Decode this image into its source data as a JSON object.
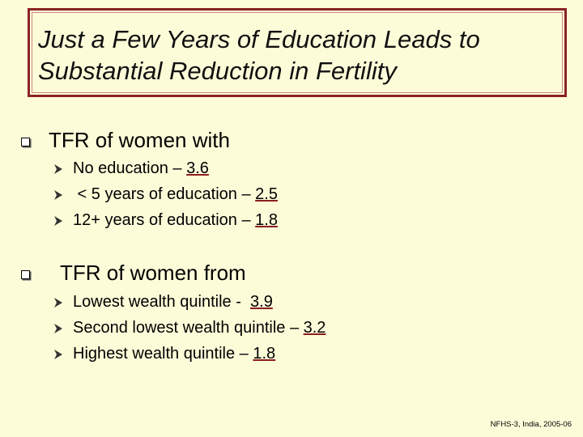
{
  "title": "Just a Few Years of Education Leads to Substantial Reduction in Fertility",
  "sections": [
    {
      "heading": "TFR of women with",
      "items": [
        {
          "label": "No education – ",
          "value": "3.6"
        },
        {
          "label": " < 5 years of education – ",
          "value": "2.5"
        },
        {
          "label": "12+ years of education – ",
          "value": "1.8"
        }
      ]
    },
    {
      "heading": "TFR of women from",
      "items": [
        {
          "label": "Lowest wealth quintile -  ",
          "value": "3.9"
        },
        {
          "label": "Second lowest wealth quintile – ",
          "value": "3.2"
        },
        {
          "label": "Highest wealth quintile – ",
          "value": "1.8"
        }
      ]
    }
  ],
  "source": "NFHS-3, India, 2005-06",
  "colors": {
    "background": "#fdfcd9",
    "frame": "#8b2323",
    "value_underline": "#8b1e1e"
  }
}
